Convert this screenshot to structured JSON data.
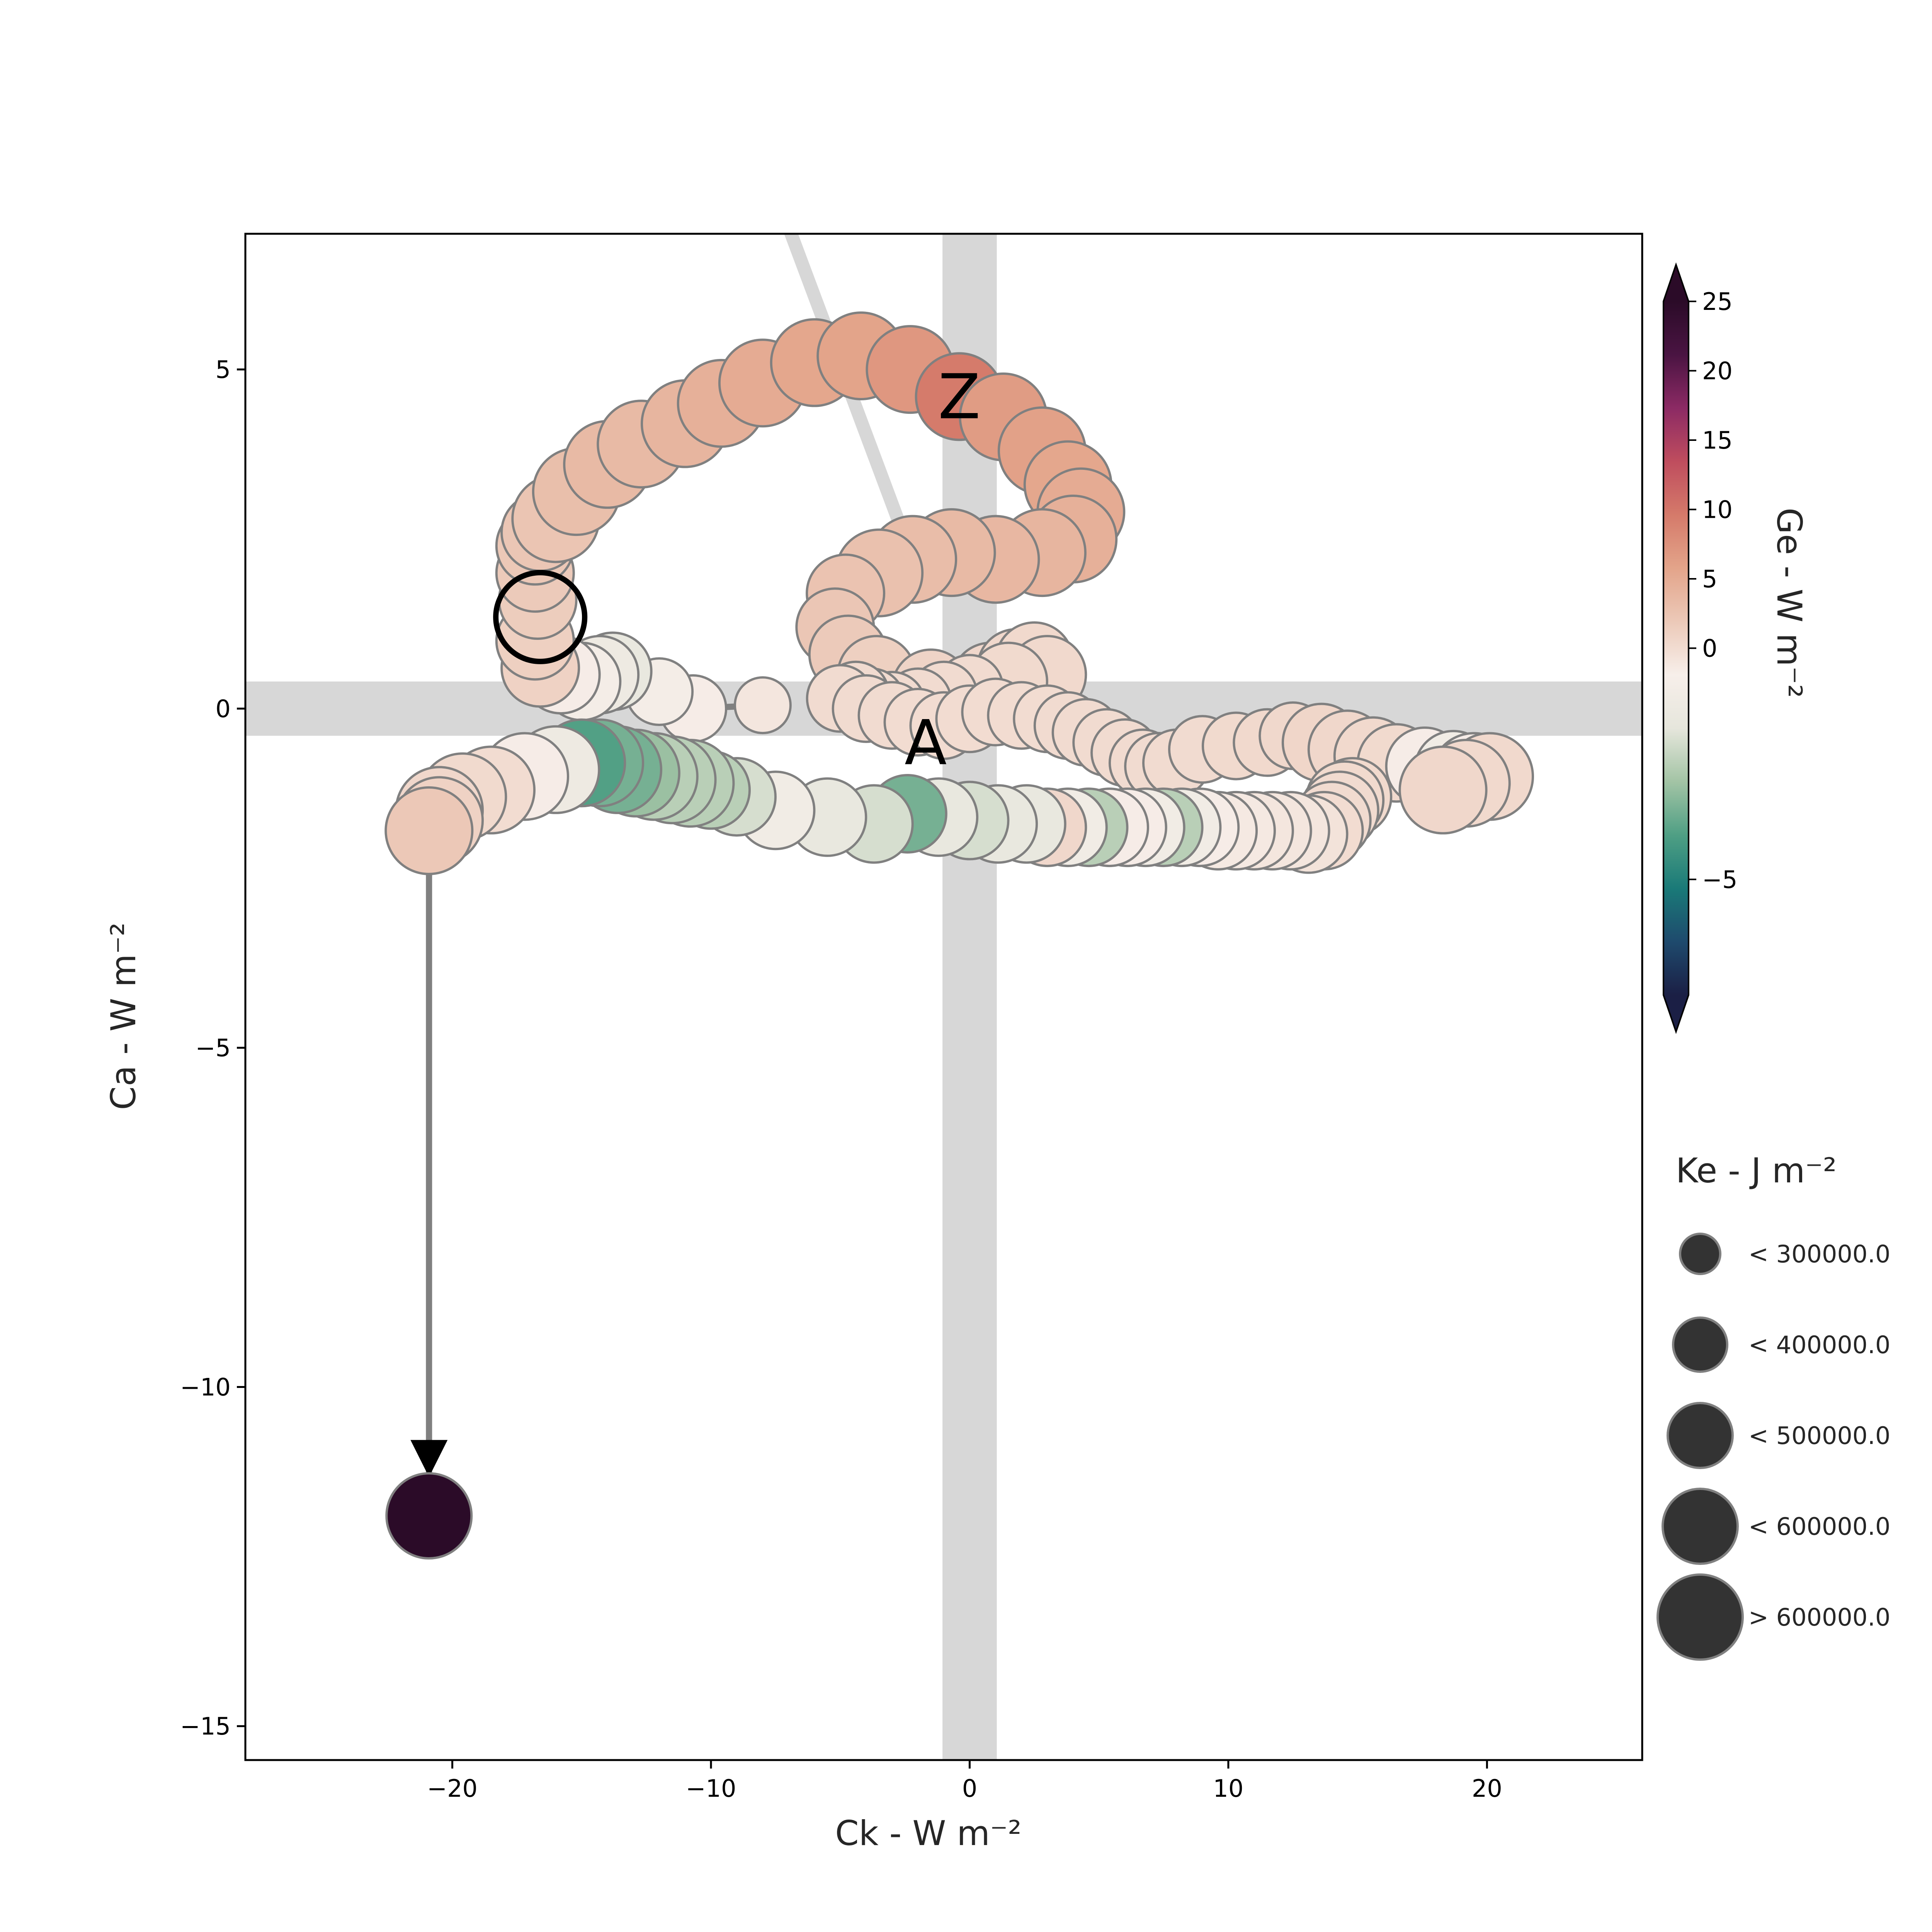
{
  "chart_data": {
    "type": "scatter",
    "xlabel": "Ck -  W m⁻²",
    "ylabel": "Ca -  W m⁻²",
    "xlim": [
      -28,
      26
    ],
    "ylim": [
      -15.5,
      7
    ],
    "xticks": [
      -20,
      -10,
      0,
      10,
      20
    ],
    "yticks": [
      -15,
      -10,
      -5,
      0,
      5
    ],
    "xtick_labels": [
      "−20",
      "−10",
      "0",
      "10",
      "20"
    ],
    "ytick_labels": [
      "−15",
      "−10",
      "−5",
      "0",
      "5"
    ],
    "grid": false,
    "colorbar": {
      "label": "Ge -  W m⁻²",
      "range": [
        -7.5,
        25
      ],
      "ticks": [
        -5,
        0,
        5,
        10,
        15,
        20,
        25
      ],
      "tick_labels": [
        "−5",
        "0",
        "5",
        "10",
        "15",
        "20",
        "25"
      ],
      "extend": "both",
      "colormap": [
        "#1b1f45",
        "#1e4a6d",
        "#1a7a78",
        "#4f9f84",
        "#a3c4a5",
        "#e6e6dc",
        "#f7efea",
        "#ecc9b8",
        "#e3a48a",
        "#d57a6a",
        "#bf4d5e",
        "#8c2a64",
        "#4a1442",
        "#2b0b28"
      ]
    },
    "size_legend": {
      "title": "Ke -  J m⁻²",
      "entries": [
        "< 300000.0",
        "< 400000.0",
        "< 500000.0",
        "< 600000.0",
        "> 600000.0"
      ],
      "position": "lower right, outside axes"
    },
    "labels": [
      {
        "text": "A",
        "x": -1.7,
        "y": -0.5
      },
      {
        "text": "Z",
        "x": -0.4,
        "y": 4.6
      }
    ],
    "start_point": {
      "x": -16.6,
      "y": 1.35
    },
    "series": [
      {
        "x": [
          -8.0,
          -10.7,
          -12.0,
          -13.8,
          -14.3,
          -15.0,
          -15.8,
          -16.6,
          -16.8,
          -16.7,
          -16.8,
          -16.8,
          -16.6,
          -16.0,
          -15.2,
          -14.0,
          -12.7,
          -11.0,
          -9.6,
          -8.0,
          -6.0,
          -4.2,
          -2.3,
          -0.4,
          1.3,
          2.8,
          3.8,
          4.3,
          4.0,
          2.8,
          1.0,
          -0.7,
          -2.2,
          -3.5,
          -4.8,
          -5.2,
          -4.7,
          -3.6,
          -1.5,
          0.8,
          1.8,
          2.5,
          3.0,
          1.5,
          0.0,
          -1.0,
          -2.0,
          -3.0,
          -3.8,
          -4.4,
          -5.0,
          -4.0,
          -3.0,
          -2.0,
          -1.0,
          0.0,
          1.0,
          2.0,
          3.0,
          3.8,
          4.5,
          5.3,
          6.0,
          6.7,
          7.3,
          8.0,
          9.0,
          10.3,
          11.5,
          12.5,
          13.6,
          14.6,
          15.6,
          16.5,
          17.6,
          18.7,
          19.5,
          20.1,
          19.2,
          18.3,
          14.8,
          14.5,
          14.3,
          14.0,
          13.7,
          13.1,
          12.4,
          11.7,
          11.0,
          10.3,
          9.6,
          8.9,
          8.2,
          7.5,
          6.8,
          6.1,
          5.4,
          4.6,
          3.8,
          3.0,
          2.2,
          1.1,
          0.0,
          -1.2,
          -2.4,
          -3.7,
          -5.5,
          -7.5,
          -9.0,
          -10.0,
          -10.8,
          -11.5,
          -12.2,
          -12.9,
          -13.6,
          -14.3,
          -15.0,
          -16.0,
          -17.2,
          -18.5,
          -19.6,
          -20.5,
          -20.5,
          -20.9
        ],
        "y": [
          0.05,
          0.0,
          0.25,
          0.55,
          0.5,
          0.4,
          0.5,
          0.6,
          1.0,
          1.6,
          2.0,
          2.4,
          2.6,
          2.8,
          3.2,
          3.6,
          3.9,
          4.2,
          4.5,
          4.8,
          5.1,
          5.2,
          5.0,
          4.6,
          4.3,
          3.8,
          3.3,
          2.9,
          2.5,
          2.3,
          2.2,
          2.3,
          2.2,
          2.0,
          1.7,
          1.2,
          0.8,
          0.5,
          0.3,
          0.4,
          0.6,
          0.7,
          0.5,
          0.4,
          0.3,
          0.2,
          0.1,
          0.05,
          0.1,
          0.2,
          0.15,
          0.0,
          -0.1,
          -0.2,
          -0.25,
          -0.15,
          -0.05,
          -0.1,
          -0.15,
          -0.25,
          -0.35,
          -0.5,
          -0.65,
          -0.8,
          -0.85,
          -0.8,
          -0.6,
          -0.55,
          -0.5,
          -0.4,
          -0.5,
          -0.6,
          -0.7,
          -0.8,
          -0.85,
          -0.9,
          -1.0,
          -1.0,
          -1.1,
          -1.2,
          -1.3,
          -1.35,
          -1.5,
          -1.65,
          -1.8,
          -1.85,
          -1.8,
          -1.8,
          -1.8,
          -1.8,
          -1.8,
          -1.75,
          -1.75,
          -1.75,
          -1.75,
          -1.75,
          -1.75,
          -1.75,
          -1.75,
          -1.75,
          -1.7,
          -1.7,
          -1.65,
          -1.6,
          -1.55,
          -1.7,
          -1.6,
          -1.5,
          -1.3,
          -1.2,
          -1.1,
          -1.05,
          -1.0,
          -0.95,
          -0.9,
          -0.8,
          -0.8,
          -0.9,
          -1.0,
          -1.2,
          -1.3,
          -1.5,
          -1.65,
          -1.8
        ],
        "size_class": [
          1,
          2,
          2,
          3,
          3,
          3,
          3,
          3,
          3,
          3,
          3,
          3,
          3,
          4,
          4,
          4,
          4,
          4,
          4,
          4,
          4,
          4,
          4,
          4,
          4,
          4,
          4,
          4,
          4,
          4,
          4,
          4,
          4,
          4,
          3,
          3,
          3,
          3,
          3,
          3,
          3,
          3,
          3,
          3,
          2,
          2,
          2,
          2,
          2,
          2,
          2,
          2,
          2,
          2,
          2,
          2,
          2,
          2,
          2,
          2,
          2,
          2,
          2,
          2,
          2,
          2,
          2,
          2,
          2,
          2,
          3,
          3,
          3,
          3,
          3,
          3,
          4,
          4,
          4,
          4,
          3,
          3,
          3,
          3,
          3,
          3,
          3,
          3,
          3,
          3,
          3,
          3,
          3,
          3,
          3,
          3,
          3,
          3,
          3,
          3,
          3,
          3,
          3,
          3,
          3,
          3,
          3,
          3,
          3,
          3,
          4,
          4,
          4,
          4,
          4,
          4,
          4,
          4,
          4,
          4,
          4,
          4,
          4,
          4
        ],
        "ge": [
          -0.3,
          -0.5,
          -0.8,
          -1.5,
          -1.2,
          -0.8,
          -0.5,
          1.0,
          1.2,
          1.5,
          1.8,
          2.0,
          2.2,
          2.3,
          3.0,
          3.5,
          3.5,
          4.0,
          4.5,
          5.0,
          5.5,
          5.8,
          7.0,
          9.5,
          6.5,
          6.0,
          5.5,
          5.0,
          4.5,
          4.0,
          3.8,
          3.5,
          3.2,
          2.8,
          2.5,
          2.2,
          1.8,
          1.2,
          0.8,
          0.5,
          0.4,
          0.3,
          0.3,
          0.2,
          0.1,
          0.1,
          0.1,
          0.1,
          0.1,
          0.1,
          0.1,
          0.1,
          0.1,
          0.0,
          0.0,
          0.0,
          0.0,
          0.0,
          0.0,
          0.1,
          0.1,
          0.1,
          0.1,
          0.1,
          0.1,
          0.1,
          0.1,
          0.2,
          0.3,
          0.4,
          0.6,
          0.5,
          0.3,
          0.2,
          -0.5,
          -1.0,
          -0.5,
          0.3,
          0.3,
          0.5,
          0.2,
          0.2,
          0.1,
          0.1,
          0.0,
          -0.2,
          -0.3,
          -0.3,
          -0.3,
          -0.4,
          -0.4,
          -0.5,
          -1.0,
          -2.5,
          -1.0,
          -0.5,
          -0.5,
          -2.5,
          -1.0,
          0.5,
          -1.5,
          -1.5,
          -2.0,
          -1.5,
          -3.5,
          -2.0,
          -1.5,
          -1.0,
          -2.0,
          -2.5,
          -2.5,
          -2.5,
          -2.5,
          -3.0,
          -3.5,
          -3.5,
          -4.0,
          -1.2,
          -0.5,
          0.0,
          0.2,
          0.5,
          1.0,
          2.0
        ],
        "end_point": {
          "x": -20.9,
          "y": -11.9,
          "ge": 25.5
        }
      }
    ]
  }
}
